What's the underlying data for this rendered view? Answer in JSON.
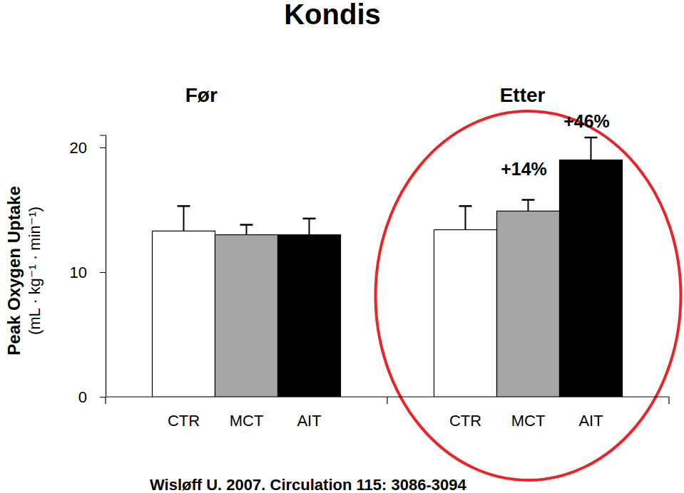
{
  "chart_data": {
    "type": "bar",
    "title": "Kondis",
    "ylabel": [
      "Peak Oxygen Uptake",
      "(mL · kg⁻¹ · min⁻¹)"
    ],
    "categories": [
      "Før",
      "Etter"
    ],
    "series": [
      {
        "name": "CTR",
        "color": "#ffffff",
        "values": [
          13.3,
          13.4
        ],
        "error": [
          2.0,
          1.9
        ]
      },
      {
        "name": "MCT",
        "color": "#a6a6a6",
        "values": [
          13.0,
          14.9
        ],
        "error": [
          0.8,
          0.9
        ]
      },
      {
        "name": "AIT",
        "color": "#000000",
        "values": [
          13.0,
          19.0
        ],
        "error": [
          1.3,
          1.8
        ]
      }
    ],
    "annotations": [
      {
        "text": "+14%"
      },
      {
        "text": "+46%"
      }
    ],
    "source": "Wisløff U. 2007. Circulation 115: 3086-3094",
    "ylim": [
      0,
      21
    ],
    "yticks": [
      0,
      10,
      20
    ],
    "grid": false
  }
}
